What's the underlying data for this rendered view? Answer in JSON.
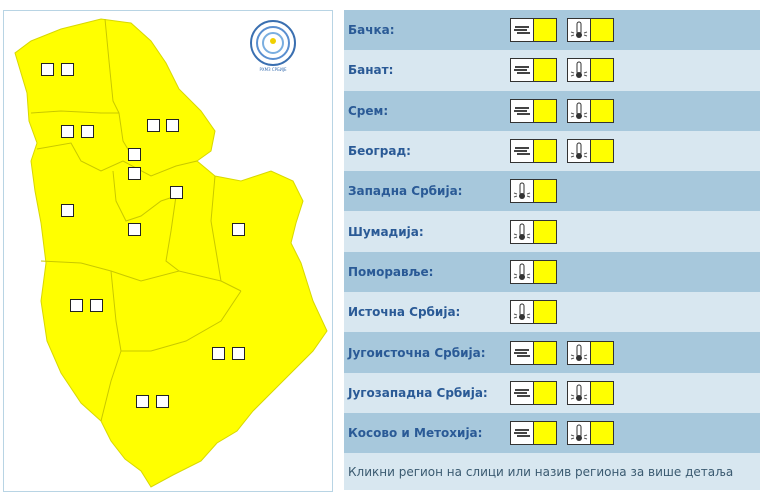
{
  "colors": {
    "warning_level": "#ffff00",
    "row_dark": "#a7c8dc",
    "row_light": "#d8e7f0",
    "label": "#2a5a96"
  },
  "logo_text": "РХМЗ СРБИЈЕ",
  "regions": [
    {
      "name": "Бачка:",
      "warnings": [
        "fog-icon",
        "high-temperature-icon"
      ],
      "level_color": "#ffff00"
    },
    {
      "name": "Банат:",
      "warnings": [
        "fog-icon",
        "high-temperature-icon"
      ],
      "level_color": "#ffff00"
    },
    {
      "name": "Срем:",
      "warnings": [
        "fog-icon",
        "high-temperature-icon"
      ],
      "level_color": "#ffff00"
    },
    {
      "name": "Београд:",
      "warnings": [
        "fog-icon",
        "high-temperature-icon"
      ],
      "level_color": "#ffff00"
    },
    {
      "name": "Западна Србија:",
      "warnings": [
        "high-temperature-icon"
      ],
      "level_color": "#ffff00"
    },
    {
      "name": "Шумадија:",
      "warnings": [
        "high-temperature-icon"
      ],
      "level_color": "#ffff00"
    },
    {
      "name": "Поморавље:",
      "warnings": [
        "high-temperature-icon"
      ],
      "level_color": "#ffff00"
    },
    {
      "name": "Источна Србија:",
      "warnings": [
        "high-temperature-icon"
      ],
      "level_color": "#ffff00"
    },
    {
      "name": "Југоисточна Србија:",
      "warnings": [
        "fog-icon",
        "high-temperature-icon"
      ],
      "level_color": "#ffff00"
    },
    {
      "name": "Југозападна Србија:",
      "warnings": [
        "fog-icon",
        "high-temperature-icon"
      ],
      "level_color": "#ffff00"
    },
    {
      "name": "Косово и Метохија:",
      "warnings": [
        "fog-icon",
        "high-temperature-icon"
      ],
      "level_color": "#ffff00"
    }
  ],
  "footer": "Кликни регион на слици или назив региона за више детаља"
}
